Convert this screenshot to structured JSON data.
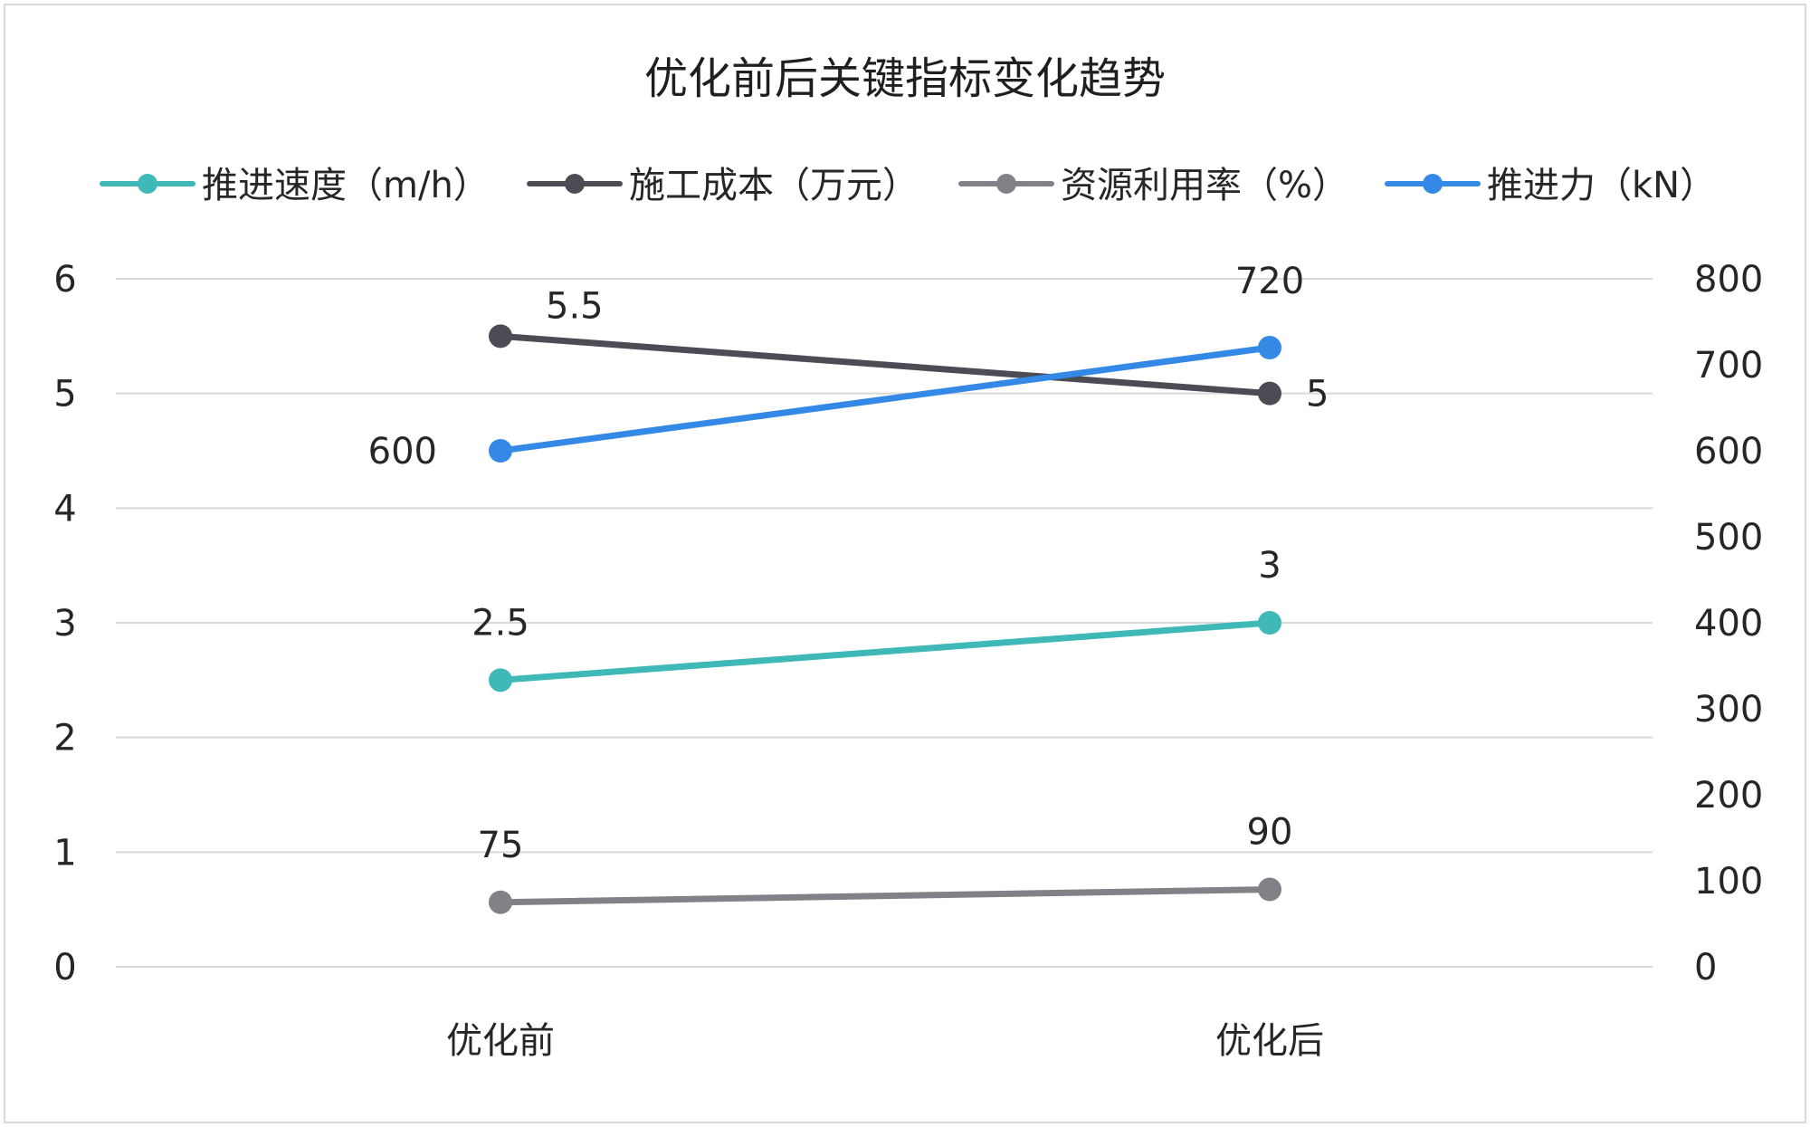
{
  "chart_data": {
    "type": "line",
    "title": "优化前后关键指标变化趋势",
    "categories": [
      "优化前",
      "优化后"
    ],
    "y_left": {
      "min": 0,
      "max": 6,
      "ticks": [
        "0",
        "1",
        "2",
        "3",
        "4",
        "5",
        "6"
      ]
    },
    "y_right": {
      "min": 0,
      "max": 800,
      "ticks": [
        "0",
        "100",
        "200",
        "300",
        "400",
        "500",
        "600",
        "700",
        "800"
      ]
    },
    "grid": true,
    "legend_position": "top",
    "series": [
      {
        "name": "推进速度（m/h）",
        "axis": "left",
        "values": [
          2.5,
          3
        ],
        "labels": [
          "2.5",
          "3"
        ],
        "color": "#3fb8b8"
      },
      {
        "name": "施工成本（万元）",
        "axis": "left",
        "values": [
          5.5,
          5
        ],
        "labels": [
          "5.5",
          "5"
        ],
        "color": "#4b4c54"
      },
      {
        "name": "资源利用率（%）",
        "axis": "right",
        "values": [
          75,
          90
        ],
        "labels": [
          "75",
          "90"
        ],
        "color": "#808288"
      },
      {
        "name": "推进力（kN）",
        "axis": "right",
        "values": [
          600,
          720
        ],
        "labels": [
          "600",
          "720"
        ],
        "color": "#3589e6"
      }
    ]
  }
}
